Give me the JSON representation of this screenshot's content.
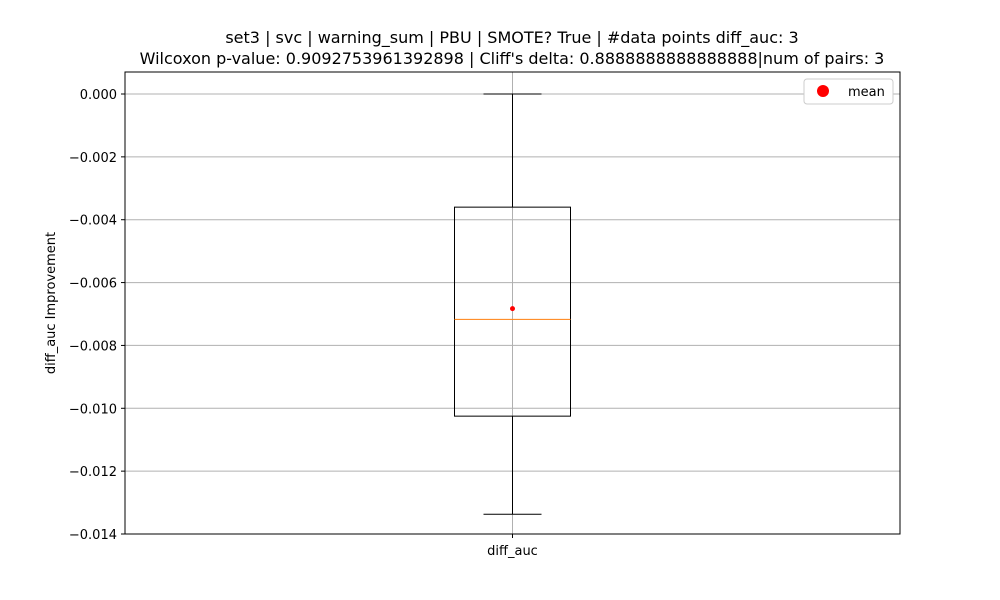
{
  "chart_data": {
    "type": "box",
    "title": "set3 | svc | warning_sum | PBU | SMOTE? True | #data points diff_auc: 3",
    "subtitle": "Wilcoxon p-value: 0.9092753961392898 | Cliff's delta: 0.8888888888888888|num of pairs: 3",
    "xlabel": "",
    "ylabel": "diff_auc Improvement",
    "categories": [
      "diff_auc"
    ],
    "ylim": [
      -0.014,
      0.0007
    ],
    "yticks": [
      0.0,
      -0.002,
      -0.004,
      -0.006,
      -0.008,
      -0.01,
      -0.012,
      -0.014
    ],
    "ytick_labels": [
      "0.000",
      "−0.002",
      "−0.004",
      "−0.006",
      "−0.008",
      "−0.010",
      "−0.012",
      "−0.014"
    ],
    "grid": true,
    "legend": {
      "position": "top-right",
      "entries": [
        {
          "label": "mean",
          "color": "#ff0000",
          "marker": "circle"
        }
      ]
    },
    "boxes": [
      {
        "category": "diff_auc",
        "whisker_low": -0.01337,
        "q1": -0.01025,
        "median": -0.00717,
        "q3": -0.0036,
        "whisker_high": 0.0,
        "mean": -0.00683
      }
    ],
    "colors": {
      "box": "#000000",
      "median": "#ff7f0e",
      "mean": "#ff0000",
      "grid": "#b0b0b0"
    }
  }
}
